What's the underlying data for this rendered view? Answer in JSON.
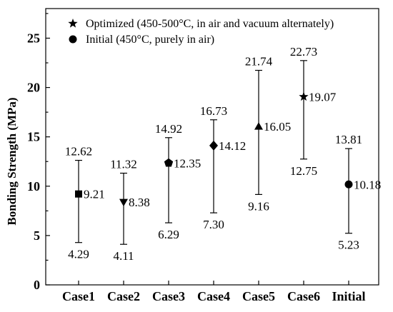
{
  "chart_data": {
    "type": "scatter",
    "title": "",
    "xlabel": "",
    "ylabel": "Bonding Strength (MPa)",
    "ylim": [
      0,
      28
    ],
    "yticks": [
      0,
      5,
      10,
      15,
      20,
      25
    ],
    "categories": [
      "Case1",
      "Case2",
      "Case3",
      "Case4",
      "Case5",
      "Case6",
      "Initial"
    ],
    "points": [
      {
        "category": "Case1",
        "value": 9.21,
        "value_label": "9.21",
        "upper": 12.62,
        "upper_label": "12.62",
        "lower": 4.29,
        "lower_label": "4.29",
        "marker": "square"
      },
      {
        "category": "Case2",
        "value": 8.38,
        "value_label": "8.38",
        "upper": 11.32,
        "upper_label": "11.32",
        "lower": 4.11,
        "lower_label": "4.11",
        "marker": "triangle-down"
      },
      {
        "category": "Case3",
        "value": 12.35,
        "value_label": "12.35",
        "upper": 14.92,
        "upper_label": "14.92",
        "lower": 6.29,
        "lower_label": "6.29",
        "marker": "pentagon"
      },
      {
        "category": "Case4",
        "value": 14.12,
        "value_label": "14.12",
        "upper": 16.73,
        "upper_label": "16.73",
        "lower": 7.3,
        "lower_label": "7.30",
        "marker": "diamond"
      },
      {
        "category": "Case5",
        "value": 16.05,
        "value_label": "16.05",
        "upper": 21.74,
        "upper_label": "21.74",
        "lower": 9.16,
        "lower_label": "9.16",
        "marker": "triangle-up"
      },
      {
        "category": "Case6",
        "value": 19.07,
        "value_label": "19.07",
        "upper": 22.73,
        "upper_label": "22.73",
        "lower": 12.75,
        "lower_label": "12.75",
        "marker": "star"
      },
      {
        "category": "Initial",
        "value": 10.18,
        "value_label": "10.18",
        "upper": 13.81,
        "upper_label": "13.81",
        "lower": 5.23,
        "lower_label": "5.23",
        "marker": "circle"
      }
    ],
    "legend": {
      "placement": "top-left",
      "entries": [
        {
          "marker": "star",
          "label": "Optimized (450-500°C, in air and vacuum alternately)"
        },
        {
          "marker": "circle",
          "label": "Initial (450°C, purely in air)"
        }
      ]
    },
    "grid": false,
    "colors": {
      "marker": "#000000",
      "axis": "#000000"
    }
  }
}
